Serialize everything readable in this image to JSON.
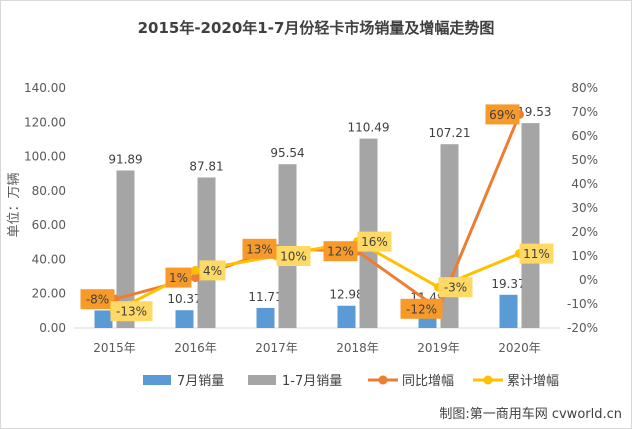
{
  "chart_data": {
    "type": "bar",
    "title": "2015年-2020年1-7月份轻卡市场销量及增幅走势图",
    "ylabel": "单位：万辆",
    "credit": "制图:第一商用车网 cvworld.cn",
    "categories": [
      "2015年",
      "2016年",
      "2017年",
      "2018年",
      "2019年",
      "2020年"
    ],
    "ylim": [
      0,
      140
    ],
    "y2lim": [
      -20,
      80
    ],
    "y_ticks": [
      "0.00",
      "20.00",
      "40.00",
      "60.00",
      "80.00",
      "100.00",
      "120.00",
      "140.00"
    ],
    "y2_ticks": [
      "-20%",
      "-10%",
      "0%",
      "10%",
      "20%",
      "30%",
      "40%",
      "50%",
      "60%",
      "70%",
      "80%"
    ],
    "series": [
      {
        "name": "7月销量",
        "type": "bar",
        "axis": "left",
        "color": "#5B9BD5",
        "values": [
          10.26,
          10.37,
          11.71,
          12.98,
          11.49,
          19.37
        ],
        "labels": [
          "10.26",
          "10.37",
          "11.71",
          "12.98",
          "11.49",
          "19.37"
        ]
      },
      {
        "name": "1-7月销量",
        "type": "bar",
        "axis": "left",
        "color": "#A5A5A5",
        "values": [
          91.89,
          87.81,
          95.54,
          110.49,
          107.21,
          119.53
        ],
        "labels": [
          "91.89",
          "87.81",
          "95.54",
          "110.49",
          "107.21",
          "119.53"
        ]
      },
      {
        "name": "同比增幅",
        "type": "line",
        "axis": "right",
        "color": "#ED7D31",
        "label_bg": "#F79A2A",
        "values": [
          -8,
          1,
          13,
          12,
          -12,
          69
        ],
        "labels": [
          "-8%",
          "1%",
          "13%",
          "12%",
          "-12%",
          "69%"
        ]
      },
      {
        "name": "累计增幅",
        "type": "line",
        "axis": "right",
        "color": "#FFC000",
        "label_bg": "#FFD966",
        "values": [
          -13,
          4,
          10,
          16,
          -3,
          11
        ],
        "labels": [
          "-13%",
          "4%",
          "10%",
          "16%",
          "-3%",
          "11%"
        ]
      }
    ],
    "grid": false,
    "legend": "bottom"
  }
}
